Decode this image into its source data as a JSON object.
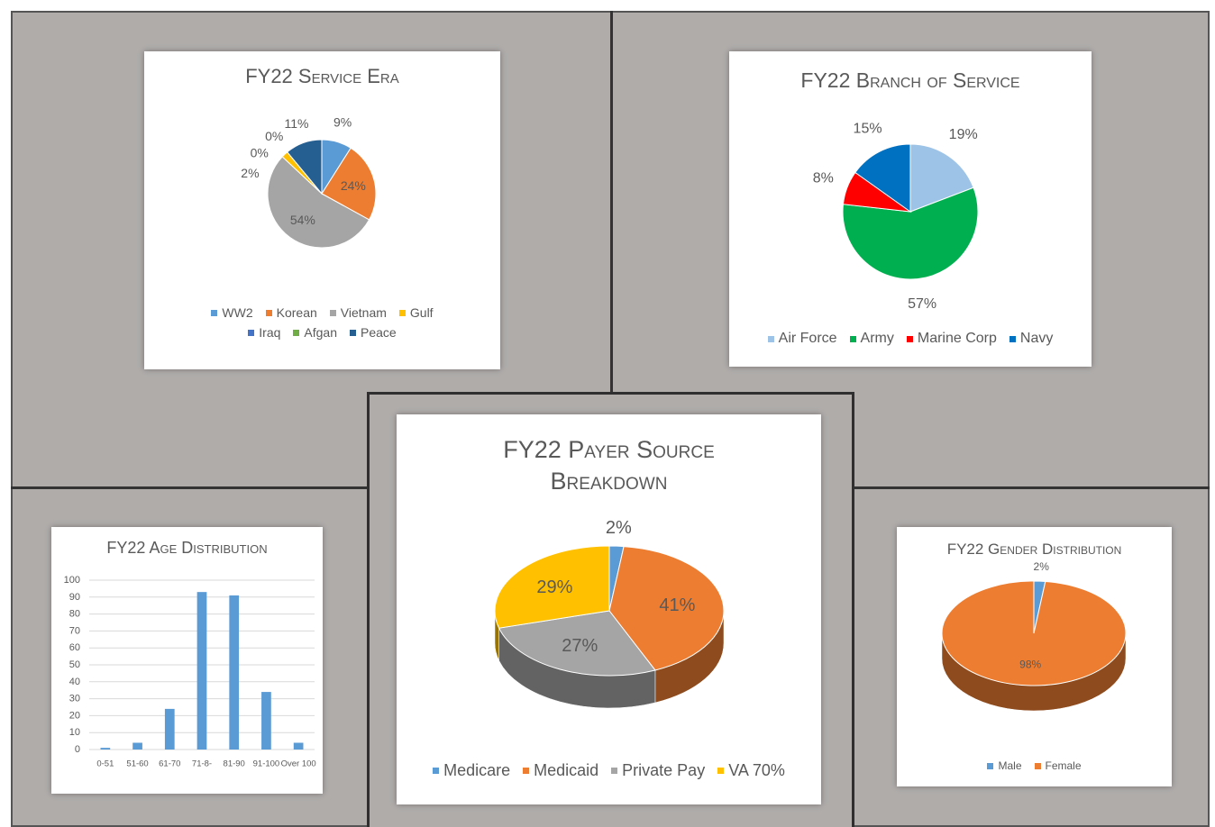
{
  "chart_data": [
    {
      "type": "pie",
      "title": "FY22 Service Era",
      "categories": [
        "WW2",
        "Korean",
        "Vietnam",
        "Gulf",
        "Iraq",
        "Afgan",
        "Peace"
      ],
      "values": [
        9,
        24,
        54,
        2,
        0,
        0,
        11
      ],
      "value_labels": [
        "9%",
        "24%",
        "54%",
        "2%",
        "0%",
        "0%",
        "11%"
      ],
      "colors": [
        "#5b9bd5",
        "#ed7d31",
        "#a5a5a5",
        "#ffc000",
        "#4472c4",
        "#70ad47",
        "#255e91"
      ]
    },
    {
      "type": "pie",
      "title": "FY22 Branch of Service",
      "categories": [
        "Air Force",
        "Army",
        "Marine Corp",
        "Navy"
      ],
      "values": [
        19,
        57,
        8,
        15
      ],
      "value_labels": [
        "19%",
        "57%",
        "8%",
        "15%"
      ],
      "colors": [
        "#9dc3e6",
        "#00b050",
        "#ff0000",
        "#0070c0"
      ]
    },
    {
      "type": "bar",
      "title": "FY22 Age Distribution",
      "categories": [
        "0-51",
        "51-60",
        "61-70",
        "71-8-",
        "81-90",
        "91-100",
        "Over 100"
      ],
      "values": [
        1,
        4,
        24,
        93,
        91,
        34,
        4
      ],
      "color": "#5b9bd5",
      "ylim": [
        0,
        100
      ],
      "yticks": [
        0,
        10,
        20,
        30,
        40,
        50,
        60,
        70,
        80,
        90,
        100
      ],
      "grid": true
    },
    {
      "type": "pie",
      "3d": true,
      "title": "FY22 Payer Source Breakdown",
      "categories": [
        "Medicare",
        "Medicaid",
        "Private Pay",
        "VA 70%"
      ],
      "values": [
        2,
        41,
        27,
        29
      ],
      "value_labels": [
        "2%",
        "41%",
        "27%",
        "29%"
      ],
      "colors": [
        "#5b9bd5",
        "#ed7d31",
        "#a5a5a5",
        "#ffc000"
      ]
    },
    {
      "type": "pie",
      "3d": true,
      "title": "FY22 Gender Distribution",
      "categories": [
        "Male",
        "Female"
      ],
      "values": [
        2,
        98
      ],
      "value_labels": [
        "2%",
        "98%"
      ],
      "colors": [
        "#5b9bd5",
        "#ed7d31"
      ]
    }
  ]
}
